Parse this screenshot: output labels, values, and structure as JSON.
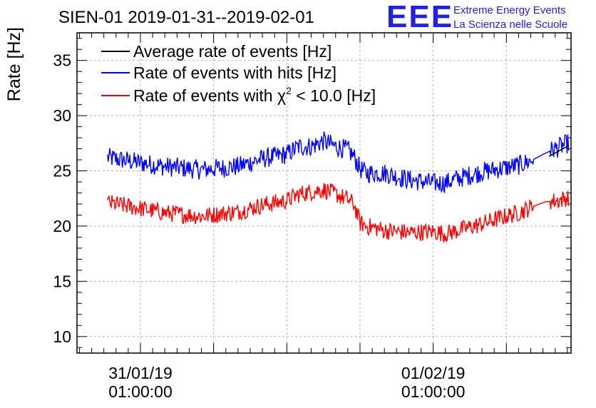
{
  "header": {
    "title": "SIEN-01 2019-01-31--2019-02-01",
    "logo_text": "EEE",
    "org_line1": "Extreme Energy Events",
    "org_line2": "La Scienza nelle Scuole"
  },
  "colors": {
    "average": "#000000",
    "hits": "#0000ff",
    "chi2": "#ff0000",
    "logo": "#2222dd",
    "grid": "#b4b4b4"
  },
  "chart_data": {
    "type": "line",
    "title": "SIEN-01 2019-01-31--2019-02-01",
    "ylabel": "Rate [Hz]",
    "xlabel": "",
    "x_unit": "hours since 31/01/19 01:00:00",
    "xlim": [
      -5.2,
      35.3
    ],
    "ylim": [
      8.5,
      37.5
    ],
    "grid": true,
    "legend_position": "top-left",
    "y_ticks": [
      10,
      15,
      20,
      25,
      30,
      35
    ],
    "y_tick_labels": [
      "10",
      "15",
      "20",
      "25",
      "30",
      "35"
    ],
    "x_ticks": [
      0,
      24
    ],
    "x_tick_labels": [
      {
        "date": "31/01/19",
        "time": "01:00:00"
      },
      {
        "date": "01/02/19",
        "time": "01:00:00"
      }
    ],
    "x_minor_grid": [
      -6,
      6,
      12,
      18,
      30
    ],
    "legend": {
      "average": "Average rate of events [Hz]",
      "hits": "Rate of events with hits [Hz]",
      "chi2_prefix": "Rate of events with ",
      "chi2_symbol": "χ",
      "chi2_exp": "2",
      "chi2_suffix": " < 10.0 [Hz]"
    },
    "noise_amplitude": {
      "hits": 0.9,
      "chi2": 0.8
    },
    "series": [
      {
        "name": "Average rate of events [Hz]",
        "key": "average",
        "x": [
          33.5,
          35.1
        ],
        "y": [
          26.3,
          27.3
        ]
      },
      {
        "name": "Rate of events with hits [Hz]",
        "key": "hits",
        "x": [
          -2.7,
          -1,
          2,
          5,
          8,
          10,
          12,
          13,
          14,
          15,
          16,
          17,
          17.5,
          18,
          18.5,
          19,
          20,
          22,
          24,
          25,
          26,
          28,
          30,
          31,
          32,
          33.2,
          34.2,
          35.1
        ],
        "y": [
          26.2,
          25.9,
          25.4,
          25.1,
          25.4,
          26.1,
          26.5,
          27.2,
          27.2,
          27.7,
          27.2,
          26.9,
          26.3,
          25.2,
          24.8,
          24.8,
          24.8,
          24.2,
          23.9,
          23.9,
          24.3,
          24.9,
          25.3,
          25.5,
          25.9,
          26.6,
          27.1,
          27.5
        ]
      },
      {
        "name": "Rate of events with χ² < 10.0 [Hz]",
        "key": "chi2",
        "x": [
          -2.7,
          -1,
          2,
          5,
          8,
          10,
          12,
          13,
          14,
          15,
          16,
          17,
          17.5,
          18,
          18.5,
          19,
          20,
          22,
          24,
          25,
          26,
          28,
          30,
          31,
          32,
          33.2,
          34.2,
          35.1
        ],
        "y": [
          22.1,
          21.8,
          21.2,
          20.9,
          21.3,
          21.9,
          22.3,
          22.9,
          23.1,
          23.3,
          22.9,
          22.4,
          22.0,
          20.3,
          20.0,
          19.9,
          19.6,
          19.4,
          19.5,
          19.3,
          19.6,
          20.2,
          20.9,
          21.2,
          21.7,
          22.2,
          22.3,
          22.6
        ]
      }
    ]
  }
}
